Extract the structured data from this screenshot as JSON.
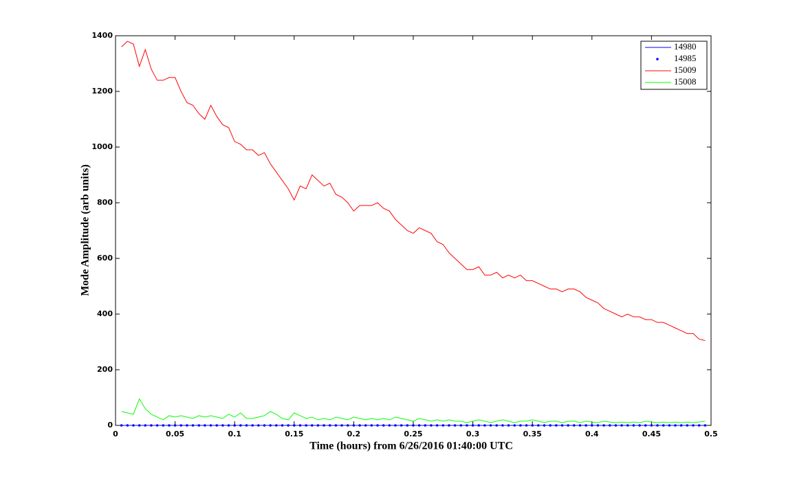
{
  "chart_data": {
    "type": "line",
    "xlabel": "Time (hours) from 6/26/2016 01:40:00 UTC",
    "ylabel": "Mode Amplitude (arb units)",
    "x": [
      0.005,
      0.01,
      0.015,
      0.02,
      0.025,
      0.03,
      0.035,
      0.04,
      0.045,
      0.05,
      0.055,
      0.06,
      0.065,
      0.07,
      0.075,
      0.08,
      0.085,
      0.09,
      0.095,
      0.1,
      0.105,
      0.11,
      0.115,
      0.12,
      0.125,
      0.13,
      0.135,
      0.14,
      0.145,
      0.15,
      0.155,
      0.16,
      0.165,
      0.17,
      0.175,
      0.18,
      0.185,
      0.19,
      0.195,
      0.2,
      0.205,
      0.21,
      0.215,
      0.22,
      0.225,
      0.23,
      0.235,
      0.24,
      0.245,
      0.25,
      0.255,
      0.26,
      0.265,
      0.27,
      0.275,
      0.28,
      0.285,
      0.29,
      0.295,
      0.3,
      0.305,
      0.31,
      0.315,
      0.32,
      0.325,
      0.33,
      0.335,
      0.34,
      0.345,
      0.35,
      0.355,
      0.36,
      0.365,
      0.37,
      0.375,
      0.38,
      0.385,
      0.39,
      0.395,
      0.4,
      0.405,
      0.41,
      0.415,
      0.42,
      0.425,
      0.43,
      0.435,
      0.44,
      0.445,
      0.45,
      0.455,
      0.46,
      0.465,
      0.47,
      0.475,
      0.48,
      0.485,
      0.49,
      0.495
    ],
    "series": [
      {
        "name": "14980",
        "color": "#0000ff",
        "style": "line",
        "values": [
          0,
          0,
          0,
          0,
          0,
          0,
          0,
          0,
          0,
          0,
          0,
          0,
          0,
          0,
          0,
          0,
          0,
          0,
          0,
          0,
          0,
          0,
          0,
          0,
          0,
          0,
          0,
          0,
          0,
          0,
          0,
          0,
          0,
          0,
          0,
          0,
          0,
          0,
          0,
          0,
          0,
          0,
          0,
          0,
          0,
          0,
          0,
          0,
          0,
          0,
          0,
          0,
          0,
          0,
          0,
          0,
          0,
          0,
          0,
          0,
          0,
          0,
          0,
          0,
          0,
          0,
          0,
          0,
          0,
          0,
          0,
          0,
          0,
          0,
          0,
          0,
          0,
          0,
          0,
          0,
          0,
          0,
          0,
          0,
          0,
          0,
          0,
          0,
          0,
          0,
          0,
          0,
          0,
          0,
          0,
          0,
          0,
          0,
          0
        ]
      },
      {
        "name": "14985",
        "color": "#0000ff",
        "style": "marker",
        "values": [
          0,
          0,
          0,
          0,
          0,
          0,
          0,
          0,
          0,
          0,
          0,
          0,
          0,
          0,
          0,
          0,
          0,
          0,
          0,
          0,
          0,
          0,
          0,
          0,
          0,
          0,
          0,
          0,
          0,
          0,
          0,
          0,
          0,
          0,
          0,
          0,
          0,
          0,
          0,
          0,
          0,
          0,
          0,
          0,
          0,
          0,
          0,
          0,
          0,
          0,
          0,
          0,
          0,
          0,
          0,
          0,
          0,
          0,
          0,
          0,
          0,
          0,
          0,
          0,
          0,
          0,
          0,
          0,
          0,
          0,
          0,
          0,
          0,
          0,
          0,
          0,
          0,
          0,
          0,
          0,
          0,
          0,
          0,
          0,
          0,
          0,
          0,
          0,
          0,
          0,
          0,
          0,
          0,
          0,
          0,
          0,
          0,
          0,
          0
        ]
      },
      {
        "name": "15009",
        "color": "#ff0000",
        "style": "line",
        "values": [
          1360,
          1380,
          1370,
          1290,
          1350,
          1280,
          1240,
          1240,
          1250,
          1250,
          1200,
          1160,
          1150,
          1120,
          1100,
          1150,
          1110,
          1080,
          1070,
          1020,
          1010,
          990,
          990,
          970,
          980,
          940,
          910,
          880,
          850,
          810,
          860,
          850,
          900,
          880,
          860,
          870,
          830,
          820,
          800,
          770,
          790,
          790,
          790,
          800,
          780,
          770,
          740,
          720,
          700,
          690,
          710,
          700,
          690,
          660,
          650,
          620,
          600,
          580,
          560,
          560,
          570,
          540,
          540,
          550,
          530,
          540,
          530,
          540,
          520,
          520,
          510,
          500,
          490,
          490,
          480,
          490,
          490,
          480,
          460,
          450,
          440,
          420,
          410,
          400,
          390,
          400,
          390,
          390,
          380,
          380,
          370,
          370,
          360,
          350,
          340,
          330,
          330,
          310,
          305
        ]
      },
      {
        "name": "15008",
        "color": "#00ff00",
        "style": "line",
        "values": [
          50,
          45,
          40,
          95,
          60,
          40,
          30,
          20,
          35,
          30,
          35,
          30,
          25,
          35,
          30,
          35,
          30,
          25,
          40,
          30,
          45,
          25,
          25,
          30,
          35,
          50,
          40,
          25,
          20,
          45,
          35,
          25,
          30,
          20,
          25,
          20,
          30,
          25,
          20,
          30,
          25,
          20,
          25,
          20,
          25,
          20,
          30,
          25,
          20,
          15,
          25,
          20,
          15,
          20,
          15,
          20,
          15,
          15,
          10,
          15,
          20,
          15,
          10,
          15,
          20,
          15,
          10,
          15,
          15,
          20,
          15,
          10,
          15,
          15,
          10,
          15,
          15,
          10,
          15,
          12,
          10,
          15,
          12,
          10,
          12,
          10,
          12,
          10,
          15,
          12,
          10,
          12,
          10,
          12,
          10,
          12,
          10,
          12,
          15
        ]
      }
    ],
    "xlim": [
      0,
      0.5
    ],
    "xticks": [
      0,
      0.05,
      0.1,
      0.15,
      0.2,
      0.25,
      0.3,
      0.35,
      0.4,
      0.45,
      0.5
    ],
    "ylim": [
      0,
      1400
    ],
    "yticks": [
      0,
      200,
      400,
      600,
      800,
      1000,
      1200,
      1400
    ],
    "grid": false,
    "legend": "upper right"
  }
}
